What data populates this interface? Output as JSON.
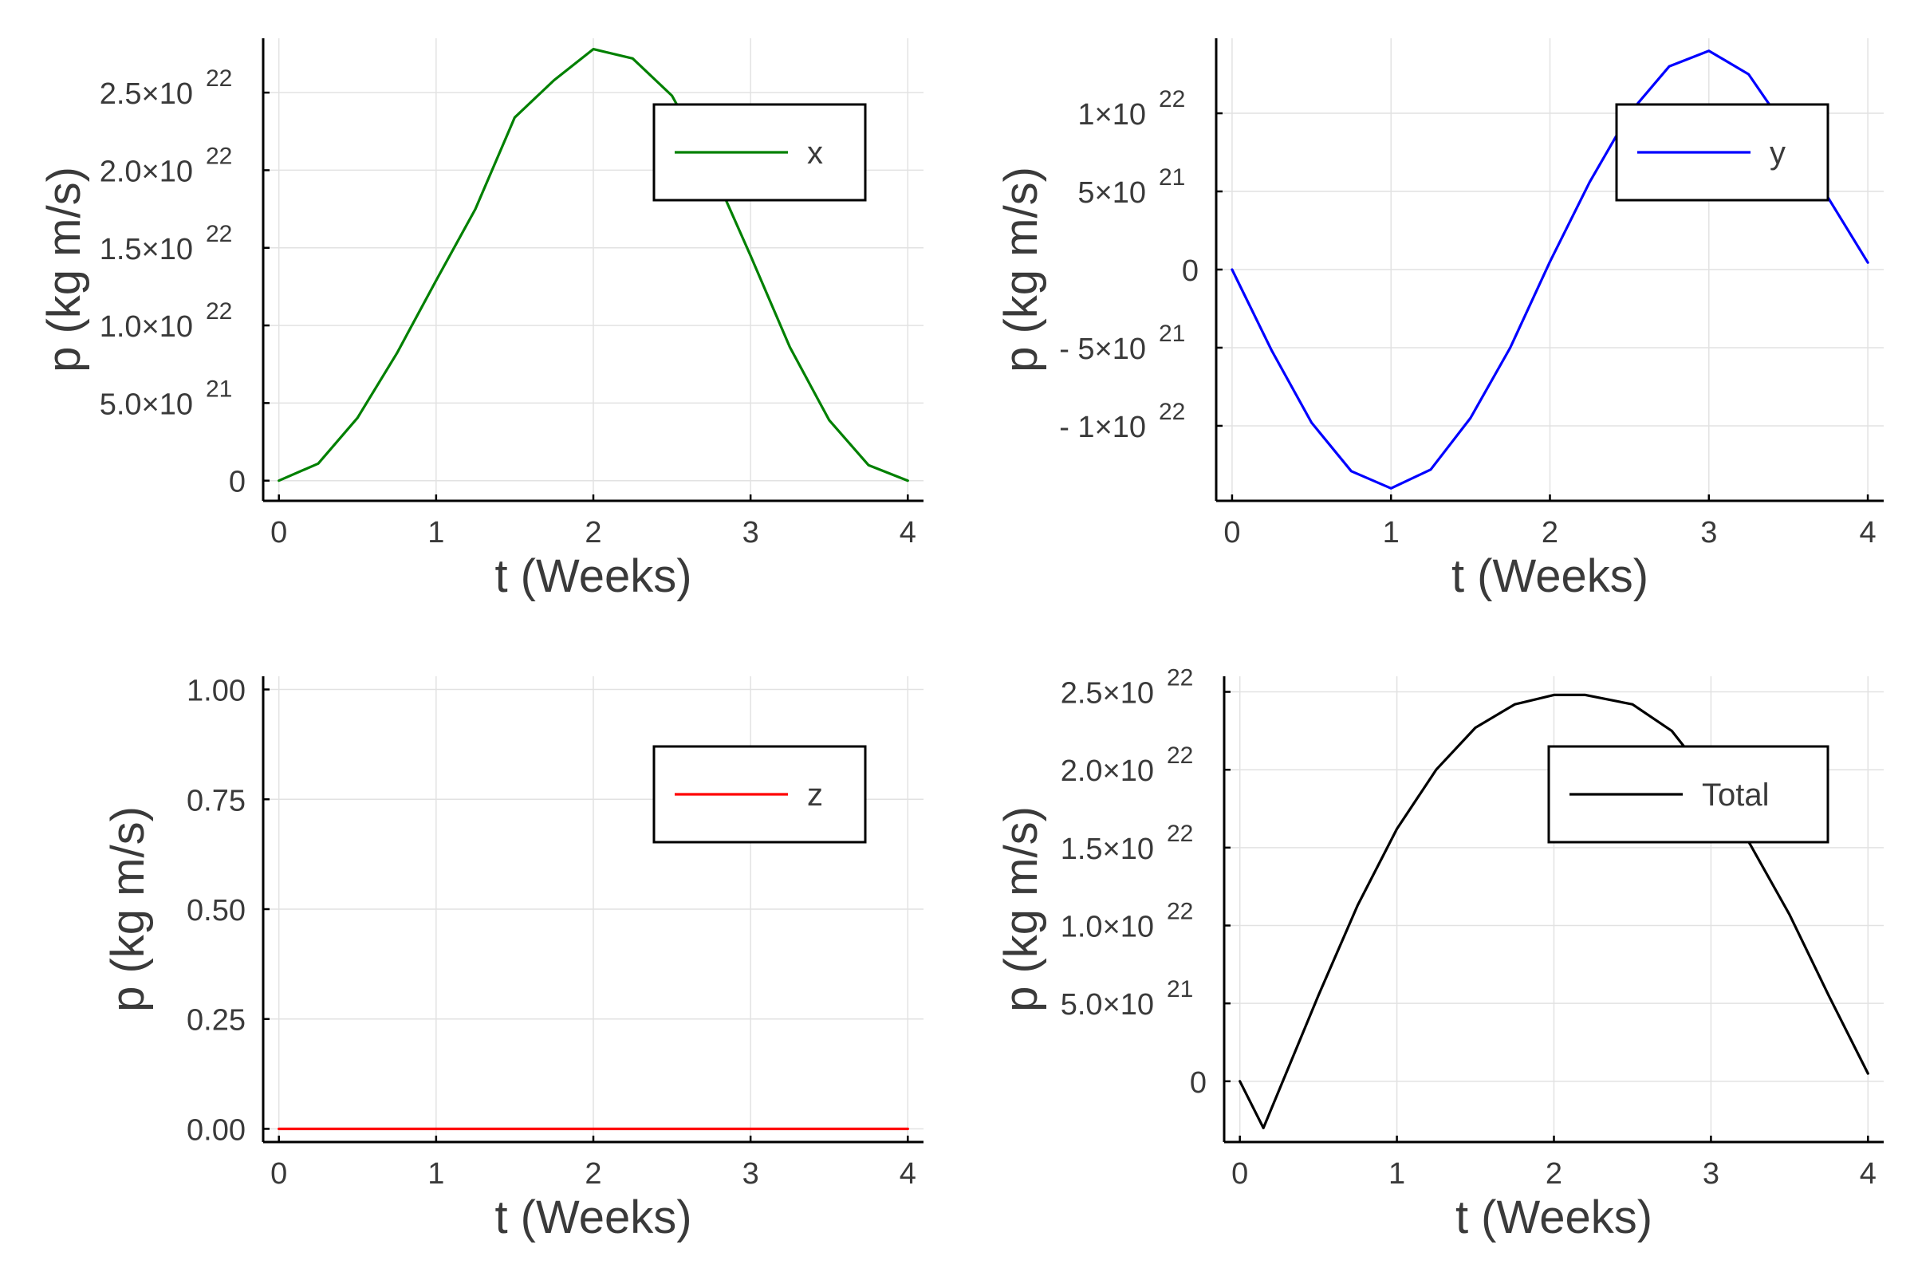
{
  "chart_data": [
    {
      "type": "line",
      "xlabel": "t (Weeks)",
      "ylabel": "p (kg m/s)",
      "xlim": [
        -0.1,
        4.1
      ],
      "ylim": [
        -1.3e+21,
        2.85e+22
      ],
      "grid": true,
      "legend": "top-right",
      "x_ticks": [
        {
          "value": 0,
          "label": "0"
        },
        {
          "value": 1,
          "label": "1"
        },
        {
          "value": 2,
          "label": "2"
        },
        {
          "value": 3,
          "label": "3"
        },
        {
          "value": 4,
          "label": "4"
        }
      ],
      "y_ticks": [
        {
          "value": 0,
          "label": "0",
          "exp": ""
        },
        {
          "value": 5e+21,
          "label": "5.0×10",
          "exp": "21"
        },
        {
          "value": 1e+22,
          "label": "1.0×10",
          "exp": "22"
        },
        {
          "value": 1.5e+22,
          "label": "1.5×10",
          "exp": "22"
        },
        {
          "value": 2e+22,
          "label": "2.0×10",
          "exp": "22"
        },
        {
          "value": 2.5e+22,
          "label": "2.5×10",
          "exp": "22"
        }
      ],
      "series": [
        {
          "name": "x",
          "color": "#008000",
          "x": [
            0,
            0.25,
            0.5,
            0.75,
            1.0,
            1.25,
            1.5,
            1.75,
            2.0,
            2.25,
            2.5,
            2.75,
            3.0,
            3.25,
            3.5,
            3.75,
            4.0
          ],
          "values": [
            0,
            1.1e+21,
            4.05e+21,
            8.2e+21,
            1.29e+22,
            1.75e+22,
            2.34e+22,
            2.58e+22,
            2.78e+22,
            2.72e+22,
            2.48e+22,
            2.02e+22,
            1.45e+22,
            8.6e+21,
            3.9e+21,
            1e+21,
            0
          ]
        }
      ]
    },
    {
      "type": "line",
      "xlabel": "t (Weeks)",
      "ylabel": "p (kg m/s)",
      "xlim": [
        -0.1,
        4.1
      ],
      "ylim": [
        -1.48e+22,
        1.48e+22
      ],
      "grid": true,
      "legend": "top-right",
      "x_ticks": [
        {
          "value": 0,
          "label": "0"
        },
        {
          "value": 1,
          "label": "1"
        },
        {
          "value": 2,
          "label": "2"
        },
        {
          "value": 3,
          "label": "3"
        },
        {
          "value": 4,
          "label": "4"
        }
      ],
      "y_ticks": [
        {
          "value": -1e+22,
          "label": "- 1×10",
          "exp": "22"
        },
        {
          "value": -5e+21,
          "label": "- 5×10",
          "exp": "21"
        },
        {
          "value": 0,
          "label": "0",
          "exp": ""
        },
        {
          "value": 5e+21,
          "label": "5×10",
          "exp": "21"
        },
        {
          "value": 1e+22,
          "label": "1×10",
          "exp": "22"
        }
      ],
      "series": [
        {
          "name": "y",
          "color": "#0000ff",
          "x": [
            0,
            0.25,
            0.5,
            0.75,
            1.0,
            1.25,
            1.5,
            1.75,
            2.0,
            2.25,
            2.5,
            2.75,
            3.0,
            3.25,
            3.5,
            3.75,
            4.0
          ],
          "values": [
            0,
            -5.2e+21,
            -9.8e+21,
            -1.29e+22,
            -1.4e+22,
            -1.28e+22,
            -9.5e+21,
            -5e+21,
            5e+20,
            5.6e+21,
            1e+22,
            1.3e+22,
            1.4e+22,
            1.25e+22,
            8.8e+21,
            4.6e+21,
            4.5e+20
          ]
        }
      ]
    },
    {
      "type": "line",
      "xlabel": "t (Weeks)",
      "ylabel": "p (kg m/s)",
      "xlim": [
        -0.1,
        4.1
      ],
      "ylim": [
        -0.03,
        1.03
      ],
      "grid": true,
      "legend": "top-right",
      "x_ticks": [
        {
          "value": 0,
          "label": "0"
        },
        {
          "value": 1,
          "label": "1"
        },
        {
          "value": 2,
          "label": "2"
        },
        {
          "value": 3,
          "label": "3"
        },
        {
          "value": 4,
          "label": "4"
        }
      ],
      "y_ticks": [
        {
          "value": 0,
          "label": "0.00",
          "exp": ""
        },
        {
          "value": 0.25,
          "label": "0.25",
          "exp": ""
        },
        {
          "value": 0.5,
          "label": "0.50",
          "exp": ""
        },
        {
          "value": 0.75,
          "label": "0.75",
          "exp": ""
        },
        {
          "value": 1.0,
          "label": "1.00",
          "exp": ""
        }
      ],
      "series": [
        {
          "name": "z",
          "color": "#ff0000",
          "x": [
            0,
            4
          ],
          "values": [
            0,
            0
          ]
        }
      ]
    },
    {
      "type": "line",
      "xlabel": "t (Weeks)",
      "ylabel": "p (kg m/s)",
      "xlim": [
        -0.1,
        4.1
      ],
      "ylim": [
        -3.9e+21,
        2.6e+22
      ],
      "grid": true,
      "legend": "top-right",
      "x_ticks": [
        {
          "value": 0,
          "label": "0"
        },
        {
          "value": 1,
          "label": "1"
        },
        {
          "value": 2,
          "label": "2"
        },
        {
          "value": 3,
          "label": "3"
        },
        {
          "value": 4,
          "label": "4"
        }
      ],
      "y_ticks": [
        {
          "value": 0,
          "label": "0",
          "exp": ""
        },
        {
          "value": 5e+21,
          "label": "5.0×10",
          "exp": "21"
        },
        {
          "value": 1e+22,
          "label": "1.0×10",
          "exp": "22"
        },
        {
          "value": 1.5e+22,
          "label": "1.5×10",
          "exp": "22"
        },
        {
          "value": 2e+22,
          "label": "2.0×10",
          "exp": "22"
        },
        {
          "value": 2.5e+22,
          "label": "2.5×10",
          "exp": "22"
        }
      ],
      "series": [
        {
          "name": "Total",
          "color": "#000000",
          "x": [
            0,
            0.15,
            0.5,
            0.75,
            1.0,
            1.25,
            1.5,
            1.75,
            2.0,
            2.2,
            2.5,
            2.75,
            3.0,
            3.25,
            3.5,
            3.75,
            4.0
          ],
          "values": [
            0,
            -3e+21,
            5.5e+21,
            1.13e+22,
            1.62e+22,
            2e+22,
            2.27e+22,
            2.42e+22,
            2.48e+22,
            2.48e+22,
            2.42e+22,
            2.25e+22,
            1.93e+22,
            1.52e+22,
            1.07e+22,
            5.5e+21,
            5e+20
          ]
        }
      ]
    }
  ]
}
